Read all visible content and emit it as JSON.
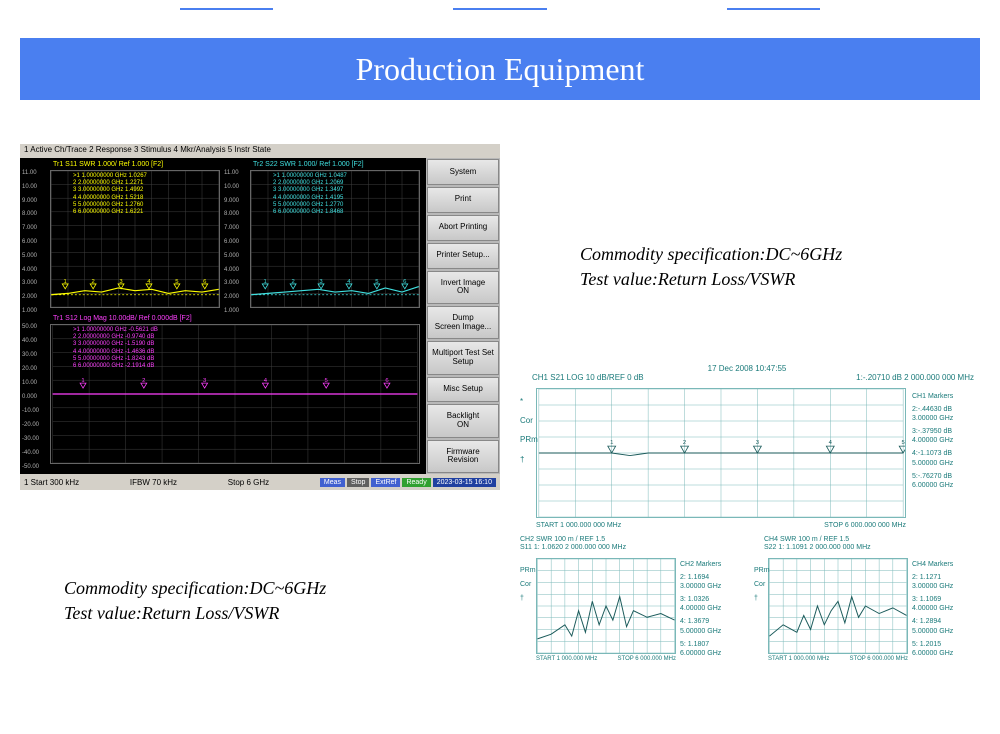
{
  "header": {
    "title": "Production Equipment"
  },
  "caption1": {
    "line1": "Commodity specification:DC~6GHz",
    "line2": "Test value:Return Loss/VSWR"
  },
  "caption2": {
    "line1": "Commodity specification:DC~6GHz",
    "line2": "Test value:Return Loss/VSWR"
  },
  "analyzer_left": {
    "menu": "1 Active Ch/Trace   2 Response   3 Stimulus   4 Mkr/Analysis   5 Instr State",
    "background": "#000000",
    "sidebar_bg": "#b8b8b8",
    "buttons": [
      "System",
      "Print",
      "Abort Printing",
      "Printer Setup...",
      "Invert Image\nON",
      "Dump\nScreen Image...",
      "Multiport Test Set\nSetup",
      "Misc Setup",
      "Backlight\nON",
      "Firmware\nRevision"
    ],
    "plot1": {
      "title": "Tr1 S11 SWR  1.000/ Ref 1.000  [F2]",
      "title_color": "#ffff00",
      "markers": [
        ">1  1.00000000 GHz  1.0267",
        " 2  2.00000000 GHz  1.2271",
        " 3  3.00000000 GHz  1.4992",
        " 4  4.00000000 GHz  1.5218",
        " 5  5.00000000 GHz  1.2760",
        " 6  6.00000000 GHz  1.6221"
      ],
      "marker_color": "#ffff00",
      "trace_color": "#ffff00",
      "yticks": [
        "11.00",
        "10.00",
        "9.000",
        "8.000",
        "7.000",
        "6.000",
        "5.000",
        "4.000",
        "3.000",
        "2.000",
        "1.000"
      ],
      "ref_line_y": 0.91,
      "trace_points": [
        [
          0,
          0.91
        ],
        [
          0.1,
          0.9
        ],
        [
          0.2,
          0.88
        ],
        [
          0.3,
          0.89
        ],
        [
          0.4,
          0.86
        ],
        [
          0.5,
          0.88
        ],
        [
          0.6,
          0.87
        ],
        [
          0.7,
          0.9
        ],
        [
          0.8,
          0.88
        ],
        [
          0.9,
          0.89
        ],
        [
          1.0,
          0.87
        ]
      ]
    },
    "plot2": {
      "title": "Tr2 S22 SWR  1.000/ Ref 1.000  [F2]",
      "title_color": "#40e0e0",
      "markers": [
        ">1  1.00000000 GHz  1.0487",
        " 2  2.00000000 GHz  1.2069",
        " 3  3.00000000 GHz  1.3497",
        " 4  4.00000000 GHz  1.4195",
        " 5  5.00000000 GHz  1.2770",
        " 6  6.00000000 GHz  1.8468"
      ],
      "marker_color": "#40e0e0",
      "trace_color": "#40e0e0",
      "yticks": [
        "11.00",
        "10.00",
        "9.000",
        "8.000",
        "7.000",
        "6.000",
        "5.000",
        "4.000",
        "3.000",
        "2.000",
        "1.000"
      ],
      "ref_line_y": 0.91,
      "trace_points": [
        [
          0,
          0.91
        ],
        [
          0.1,
          0.9
        ],
        [
          0.2,
          0.89
        ],
        [
          0.3,
          0.88
        ],
        [
          0.4,
          0.87
        ],
        [
          0.5,
          0.89
        ],
        [
          0.6,
          0.88
        ],
        [
          0.7,
          0.9
        ],
        [
          0.8,
          0.86
        ],
        [
          0.9,
          0.89
        ],
        [
          1.0,
          0.85
        ]
      ]
    },
    "plot3": {
      "title": "Tr1 S12  Log Mag 10.00dB/ Ref 0.000dB  [F2]",
      "title_color": "#ff40ff",
      "markers": [
        ">1  1.00000000 GHz  -0.5621 dB",
        " 2  2.00000000 GHz  -0.9740 dB",
        " 3  3.00000000 GHz  -1.5190 dB",
        " 4  4.00000000 GHz  -1.4636 dB",
        " 5  5.00000000 GHz  -1.8243 dB",
        " 6  6.00000000 GHz  -2.1914 dB"
      ],
      "marker_color": "#ff40ff",
      "trace_color": "#ff40ff",
      "yticks": [
        "50.00",
        "40.00",
        "30.00",
        "20.00",
        "10.00",
        "0.000",
        "-10.00",
        "-20.00",
        "-30.00",
        "-40.00",
        "-50.00"
      ],
      "ref_line_y": 0.5,
      "trace_points": [
        [
          0,
          0.5
        ],
        [
          0.1,
          0.5
        ],
        [
          0.2,
          0.5
        ],
        [
          0.3,
          0.5
        ],
        [
          0.4,
          0.5
        ],
        [
          0.5,
          0.5
        ],
        [
          0.6,
          0.5
        ],
        [
          0.7,
          0.5
        ],
        [
          0.8,
          0.5
        ],
        [
          0.9,
          0.5
        ],
        [
          1.0,
          0.5
        ]
      ]
    },
    "status": {
      "left": "1  Start 300 kHz",
      "center": "IFBW 70 kHz",
      "right": "Stop 6 GHz",
      "chips": [
        {
          "label": "Meas",
          "bg": "#4060d0"
        },
        {
          "label": "Stop",
          "bg": "#606060"
        },
        {
          "label": "ExtRef",
          "bg": "#4060d0"
        },
        {
          "label": "Ready",
          "bg": "#30a030"
        }
      ],
      "timestamp": "2023-03-15 16:10"
    }
  },
  "analyzer_right": {
    "grid_color": "#7ab8b8",
    "text_color": "#1a7a7a",
    "trace_color": "#1a5a5a",
    "timestamp": "17 Dec 2008  10:47:55",
    "ch1": {
      "header_left": "CH1  S21    LOG     10 dB/REF 0 dB",
      "header_right": "1:-.20710 dB   2 000.000 000 MHz",
      "markers_title": "CH1 Markers",
      "markers": [
        "2:-.44630 dB",
        "3.00000 GHz",
        "3:-.37950 dB",
        "4.00000 GHz",
        "4:-1.1073 dB",
        "5.00000 GHz",
        "5:-.76270 dB",
        "6.00000 GHz"
      ],
      "xstart": "START 1 000.000 000 MHz",
      "xstop": "STOP 6 000.000 000 MHz",
      "side_labels": [
        "*",
        "Cor",
        "PRm",
        "†"
      ],
      "trace_points": [
        [
          0,
          0.5
        ],
        [
          0.2,
          0.5
        ],
        [
          0.25,
          0.52
        ],
        [
          0.3,
          0.5
        ],
        [
          0.5,
          0.5
        ],
        [
          0.7,
          0.5
        ],
        [
          0.9,
          0.5
        ],
        [
          1.0,
          0.5
        ]
      ],
      "marker_x": [
        0.2,
        0.4,
        0.6,
        0.8,
        1.0
      ]
    },
    "ch2": {
      "header": "CH2   SWR    100 m / REF 1.5",
      "sub": "S11    1: 1.0620     2 000.000 000 MHz",
      "markers_title": "CH2 Markers",
      "markers": [
        "2: 1.1694",
        "3.00000 GHz",
        "3: 1.0326",
        "4.00000 GHz",
        "4: 1.3679",
        "5.00000 GHz",
        "5: 1.1807",
        "6.00000 GHz"
      ],
      "side_labels": [
        "PRm",
        "Cor",
        "†"
      ],
      "trace_points": [
        [
          0,
          0.85
        ],
        [
          0.1,
          0.8
        ],
        [
          0.2,
          0.7
        ],
        [
          0.25,
          0.82
        ],
        [
          0.3,
          0.55
        ],
        [
          0.35,
          0.78
        ],
        [
          0.4,
          0.45
        ],
        [
          0.45,
          0.7
        ],
        [
          0.5,
          0.5
        ],
        [
          0.55,
          0.65
        ],
        [
          0.6,
          0.4
        ],
        [
          0.65,
          0.72
        ],
        [
          0.7,
          0.55
        ],
        [
          0.8,
          0.62
        ],
        [
          0.9,
          0.58
        ],
        [
          1.0,
          0.65
        ]
      ],
      "xstart": "START 1 000.000 MHz",
      "xstop": "STOP 6 000.000 MHz"
    },
    "ch4": {
      "header": "CH4   SWR    100 m / REF 1.5",
      "sub": "S22    1: 1.1091     2 000.000 000 MHz",
      "markers_title": "CH4 Markers",
      "markers": [
        "2: 1.1271",
        "3.00000 GHz",
        "3: 1.1069",
        "4.00000 GHz",
        "4: 1.2894",
        "5.00000 GHz",
        "5: 1.2015",
        "6.00000 GHz"
      ],
      "side_labels": [
        "PRm",
        "Cor",
        "†"
      ],
      "trace_points": [
        [
          0,
          0.82
        ],
        [
          0.1,
          0.7
        ],
        [
          0.2,
          0.78
        ],
        [
          0.25,
          0.6
        ],
        [
          0.3,
          0.75
        ],
        [
          0.35,
          0.5
        ],
        [
          0.4,
          0.7
        ],
        [
          0.45,
          0.55
        ],
        [
          0.5,
          0.45
        ],
        [
          0.55,
          0.68
        ],
        [
          0.6,
          0.4
        ],
        [
          0.65,
          0.62
        ],
        [
          0.7,
          0.5
        ],
        [
          0.8,
          0.58
        ],
        [
          0.9,
          0.52
        ],
        [
          1.0,
          0.6
        ]
      ],
      "xstart": "START 1 000.000 MHz",
      "xstop": "STOP 6 000.000 MHz"
    }
  }
}
